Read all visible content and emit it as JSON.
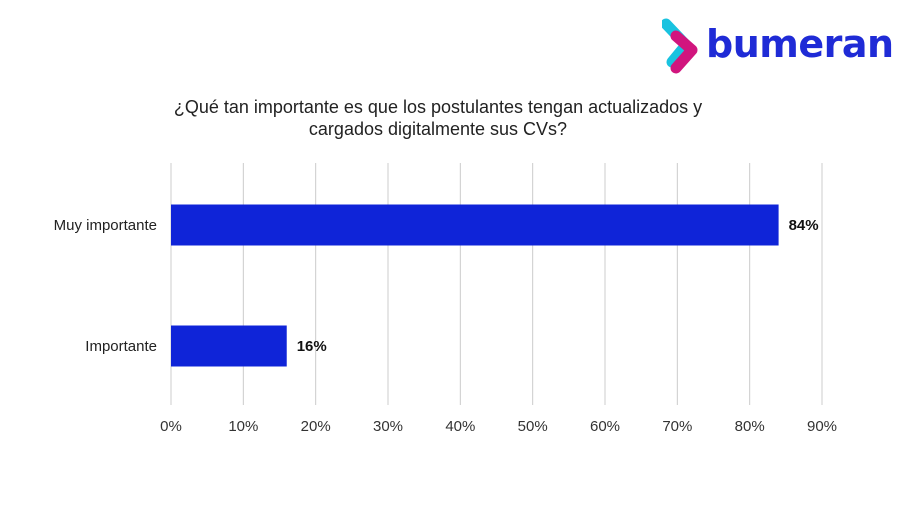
{
  "brand": {
    "name": "bumeran",
    "colors": {
      "wordmark": "#1f2bd6",
      "chevron_back": "#19c3e0",
      "chevron_front": "#d1157e",
      "chevron_mid": "#5b2bd8"
    }
  },
  "chart_data": {
    "type": "bar",
    "orientation": "horizontal",
    "title_lines": [
      "¿Qué tan importante es que los postulantes tengan actualizados y",
      "cargados digitalmente sus CVs?"
    ],
    "categories": [
      "Muy importante",
      "Importante"
    ],
    "values": [
      84,
      16
    ],
    "data_labels": [
      "84%",
      "16%"
    ],
    "xlim": [
      0,
      90
    ],
    "xticks": [
      0,
      10,
      20,
      30,
      40,
      50,
      60,
      70,
      80,
      90
    ],
    "xtick_labels": [
      "0%",
      "10%",
      "20%",
      "30%",
      "40%",
      "50%",
      "60%",
      "70%",
      "80%",
      "90%"
    ],
    "xlabel": "",
    "ylabel": "",
    "grid": "vertical",
    "legend": "none",
    "bar_color": "#0f24d8",
    "grid_color": "#cccccc"
  }
}
